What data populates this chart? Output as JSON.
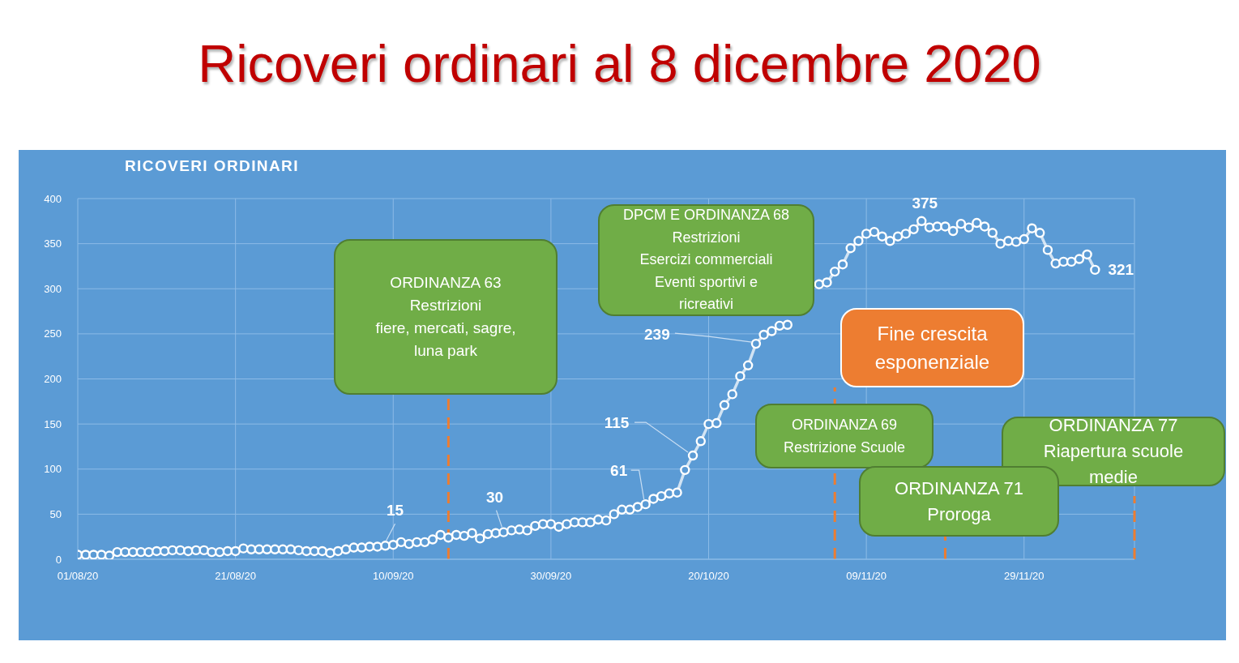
{
  "chart_data": {
    "type": "line",
    "title": "Ricoveri ordinari al 8 dicembre 2020",
    "subtitle": "RICOVERI ORDINARI",
    "annotations": [
      "ORDINANZA 63\nRestrizioni\nfiere, mercati, sagre,\nluna park",
      "DPCM E ORDINANZA 68\nRestrizioni\nEsercizi commerciali\nEventi sportivi e\nricreativi",
      "Fine crescita\nesponenziale",
      "ORDINANZA 69\nRestrizione Scuole",
      "ORDINANZA 77\nRiapertura scuole\nmedie",
      "ORDINANZA 71\nProroga"
    ],
    "x": [
      "2020-08-01",
      "2020-08-02",
      "2020-08-03",
      "2020-08-04",
      "2020-08-05",
      "2020-08-06",
      "2020-08-07",
      "2020-08-08",
      "2020-08-09",
      "2020-08-10",
      "2020-08-11",
      "2020-08-12",
      "2020-08-13",
      "2020-08-14",
      "2020-08-15",
      "2020-08-16",
      "2020-08-17",
      "2020-08-18",
      "2020-08-19",
      "2020-08-20",
      "2020-08-21",
      "2020-08-22",
      "2020-08-23",
      "2020-08-24",
      "2020-08-25",
      "2020-08-26",
      "2020-08-27",
      "2020-08-28",
      "2020-08-29",
      "2020-08-30",
      "2020-08-31",
      "2020-09-01",
      "2020-09-02",
      "2020-09-03",
      "2020-09-04",
      "2020-09-05",
      "2020-09-06",
      "2020-09-07",
      "2020-09-08",
      "2020-09-09",
      "2020-09-10",
      "2020-09-11",
      "2020-09-12",
      "2020-09-13",
      "2020-09-14",
      "2020-09-15",
      "2020-09-16",
      "2020-09-17",
      "2020-09-18",
      "2020-09-19",
      "2020-09-20",
      "2020-09-21",
      "2020-09-22",
      "2020-09-23",
      "2020-09-24",
      "2020-09-25",
      "2020-09-26",
      "2020-09-27",
      "2020-09-28",
      "2020-09-29",
      "2020-09-30",
      "2020-10-01",
      "2020-10-02",
      "2020-10-03",
      "2020-10-04",
      "2020-10-05",
      "2020-10-06",
      "2020-10-07",
      "2020-10-08",
      "2020-10-09",
      "2020-10-10",
      "2020-10-11",
      "2020-10-12",
      "2020-10-13",
      "2020-10-14",
      "2020-10-15",
      "2020-10-16",
      "2020-10-17",
      "2020-10-18",
      "2020-10-19",
      "2020-10-20",
      "2020-10-21",
      "2020-10-22",
      "2020-10-23",
      "2020-10-24",
      "2020-10-25",
      "2020-10-26",
      "2020-10-27",
      "2020-10-28",
      "2020-10-29",
      "2020-10-30",
      "2020-10-31",
      "2020-11-01",
      "2020-11-02",
      "2020-11-03",
      "2020-11-04",
      "2020-11-05",
      "2020-11-06",
      "2020-11-07",
      "2020-11-08",
      "2020-11-09",
      "2020-11-10",
      "2020-11-11",
      "2020-11-12",
      "2020-11-13",
      "2020-11-14",
      "2020-11-15",
      "2020-11-16",
      "2020-11-17",
      "2020-11-18",
      "2020-11-19",
      "2020-11-20",
      "2020-11-21",
      "2020-11-22",
      "2020-11-23",
      "2020-11-24",
      "2020-11-25",
      "2020-11-26",
      "2020-11-27",
      "2020-11-28",
      "2020-11-29",
      "2020-11-30",
      "2020-12-01",
      "2020-12-02",
      "2020-12-03",
      "2020-12-04",
      "2020-12-05",
      "2020-12-06",
      "2020-12-07",
      "2020-12-08"
    ],
    "values": [
      5,
      5,
      5,
      5,
      4,
      8,
      8,
      8,
      8,
      8,
      9,
      9,
      10,
      10,
      9,
      10,
      10,
      8,
      8,
      9,
      9,
      12,
      11,
      11,
      11,
      11,
      11,
      11,
      10,
      9,
      9,
      9,
      7,
      9,
      11,
      13,
      13,
      14,
      14,
      15,
      16,
      19,
      17,
      19,
      19,
      22,
      27,
      24,
      27,
      26,
      29,
      23,
      28,
      29,
      30,
      32,
      33,
      32,
      37,
      39,
      39,
      36,
      39,
      41,
      41,
      41,
      44,
      43,
      50,
      55,
      55,
      58,
      61,
      67,
      70,
      73,
      74,
      99,
      115,
      131,
      150,
      151,
      171,
      183,
      203,
      215,
      239,
      249,
      253,
      259,
      260,
      null,
      null,
      null,
      305,
      307,
      319,
      327,
      345,
      353,
      361,
      363,
      358,
      353,
      358,
      361,
      366,
      375,
      368,
      369,
      369,
      364,
      372,
      368,
      373,
      369,
      362,
      350,
      353,
      352,
      355,
      367,
      362,
      343,
      328,
      330,
      330,
      333,
      338,
      321
    ],
    "value_labels": [
      null,
      null,
      null,
      null,
      null,
      null,
      null,
      null,
      null,
      null,
      null,
      null,
      null,
      null,
      null,
      null,
      null,
      null,
      null,
      null,
      null,
      null,
      null,
      null,
      null,
      null,
      null,
      null,
      null,
      null,
      null,
      null,
      null,
      null,
      null,
      null,
      null,
      null,
      null,
      "15",
      null,
      null,
      null,
      null,
      null,
      null,
      null,
      null,
      null,
      null,
      null,
      null,
      null,
      null,
      "30",
      null,
      null,
      null,
      null,
      null,
      null,
      null,
      null,
      null,
      null,
      null,
      null,
      null,
      null,
      null,
      null,
      null,
      "61",
      null,
      null,
      null,
      null,
      null,
      "115",
      null,
      null,
      null,
      null,
      null,
      null,
      null,
      "239",
      null,
      null,
      null,
      null,
      null,
      null,
      null,
      null,
      null,
      null,
      null,
      null,
      null,
      null,
      null,
      null,
      null,
      null,
      null,
      null,
      "375",
      null,
      null,
      null,
      null,
      null,
      null,
      null,
      null,
      null,
      null,
      null,
      null,
      null,
      null,
      null,
      null,
      null,
      null,
      null,
      null,
      null,
      "321"
    ],
    "color": "#ffffff",
    "marker": "circle",
    "xlim": [
      "2020-08-01",
      "2020-12-13"
    ],
    "xticks": [
      {
        "value": "2020-08-01",
        "label": "01/08/20"
      },
      {
        "value": "2020-08-21",
        "label": "21/08/20"
      },
      {
        "value": "2020-09-10",
        "label": "10/09/20"
      },
      {
        "value": "2020-09-30",
        "label": "30/09/20"
      },
      {
        "value": "2020-10-20",
        "label": "20/10/20"
      },
      {
        "value": "2020-11-09",
        "label": "09/11/20"
      },
      {
        "value": "2020-11-29",
        "label": "29/11/20"
      }
    ],
    "ylim": [
      0,
      400
    ],
    "yticks": [
      0,
      50,
      100,
      150,
      200,
      250,
      300,
      350,
      400
    ],
    "grid": true,
    "ref_lines": [
      {
        "axis": "x",
        "value": "2020-09-17",
        "color": "#ed7d31",
        "line_style": "dashed"
      },
      {
        "axis": "x",
        "value": "2020-11-05",
        "color": "#ed7d31",
        "line_style": "dashed"
      },
      {
        "axis": "x",
        "value": "2020-11-19",
        "color": "#ed7d31",
        "line_style": "dashed"
      },
      {
        "axis": "x",
        "value": "2020-12-13",
        "color": "#ed7d31",
        "line_style": "dashed"
      }
    ]
  }
}
